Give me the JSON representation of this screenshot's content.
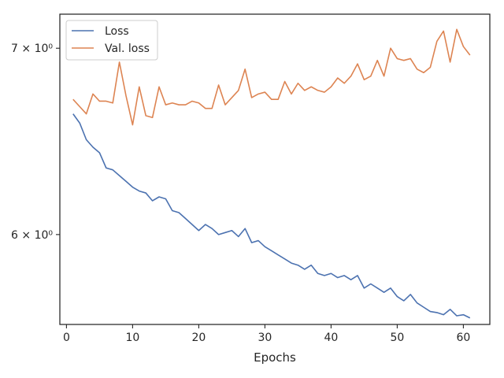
{
  "chart_data": {
    "type": "line",
    "title": "",
    "xlabel": "Epochs",
    "ylabel": "",
    "yscale": "log",
    "xlim": [
      -1,
      64
    ],
    "ylim": [
      5.57,
      7.2
    ],
    "grid": false,
    "legend_position": "top-left",
    "x_ticks": [
      0,
      10,
      20,
      30,
      40,
      50,
      60
    ],
    "y_ticks": [
      {
        "value": 6.0,
        "label": "6 × 10⁰"
      },
      {
        "value": 7.0,
        "label": "7 × 10⁰"
      }
    ],
    "x": [
      1,
      2,
      3,
      4,
      5,
      6,
      7,
      8,
      9,
      10,
      11,
      12,
      13,
      14,
      15,
      16,
      17,
      18,
      19,
      20,
      21,
      22,
      23,
      24,
      25,
      26,
      27,
      28,
      29,
      30,
      31,
      32,
      33,
      34,
      35,
      36,
      37,
      38,
      39,
      40,
      41,
      42,
      43,
      44,
      45,
      46,
      47,
      48,
      49,
      50,
      51,
      52,
      53,
      54,
      55,
      56,
      57,
      58,
      59,
      60,
      61
    ],
    "series": [
      {
        "name": "Loss",
        "color": "#4c72b0",
        "values": [
          6.63,
          6.58,
          6.49,
          6.45,
          6.42,
          6.34,
          6.33,
          6.3,
          6.27,
          6.24,
          6.22,
          6.21,
          6.17,
          6.19,
          6.18,
          6.12,
          6.11,
          6.08,
          6.05,
          6.02,
          6.05,
          6.03,
          6.0,
          6.01,
          6.02,
          5.99,
          6.03,
          5.96,
          5.97,
          5.94,
          5.92,
          5.9,
          5.88,
          5.86,
          5.85,
          5.83,
          5.85,
          5.81,
          5.8,
          5.81,
          5.79,
          5.8,
          5.78,
          5.8,
          5.74,
          5.76,
          5.74,
          5.72,
          5.74,
          5.7,
          5.68,
          5.71,
          5.67,
          5.65,
          5.63,
          5.625,
          5.615,
          5.64,
          5.61,
          5.615,
          5.6
        ]
      },
      {
        "name": "Val. loss",
        "color": "#dd8452",
        "values": [
          6.71,
          6.67,
          6.63,
          6.74,
          6.7,
          6.7,
          6.69,
          6.92,
          6.73,
          6.57,
          6.78,
          6.62,
          6.61,
          6.78,
          6.68,
          6.69,
          6.68,
          6.68,
          6.7,
          6.69,
          6.66,
          6.66,
          6.79,
          6.68,
          6.72,
          6.76,
          6.88,
          6.72,
          6.74,
          6.75,
          6.71,
          6.71,
          6.81,
          6.74,
          6.8,
          6.76,
          6.78,
          6.76,
          6.75,
          6.78,
          6.83,
          6.8,
          6.84,
          6.91,
          6.82,
          6.84,
          6.93,
          6.84,
          7.0,
          6.94,
          6.93,
          6.94,
          6.88,
          6.86,
          6.89,
          7.04,
          7.1,
          6.92,
          7.11,
          7.01,
          6.96
        ]
      }
    ]
  }
}
